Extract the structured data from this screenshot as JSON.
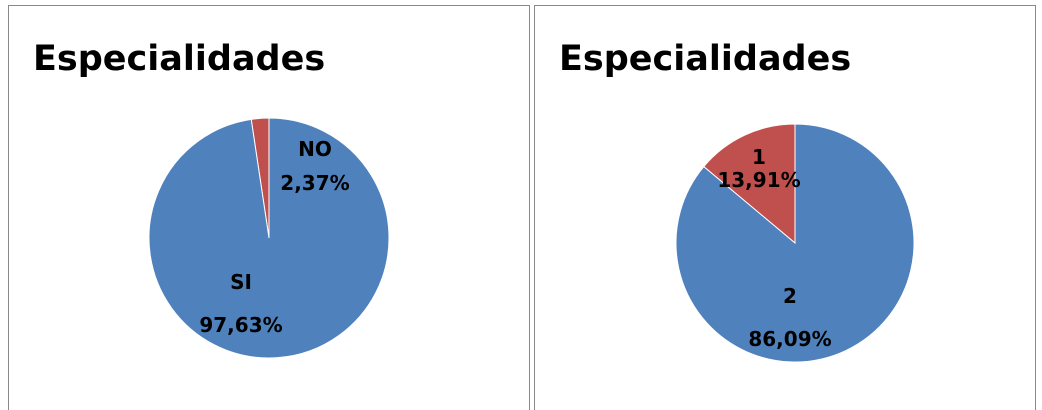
{
  "colors": {
    "series_blue": "#4f81bd",
    "series_red": "#c0504d"
  },
  "chart_data": [
    {
      "type": "pie",
      "title": "Especialidades",
      "slices": [
        {
          "category": "NO",
          "percent_label": "2,37%",
          "value": 2.37,
          "color": "#c0504d"
        },
        {
          "category": "SI",
          "percent_label": "97,63%",
          "value": 97.63,
          "color": "#4f81bd"
        }
      ]
    },
    {
      "type": "pie",
      "title": "Especialidades",
      "slices": [
        {
          "category": "1",
          "percent_label": "13,91%",
          "value": 13.91,
          "color": "#c0504d"
        },
        {
          "category": "2",
          "percent_label": "86,09%",
          "value": 86.09,
          "color": "#4f81bd"
        }
      ]
    }
  ]
}
